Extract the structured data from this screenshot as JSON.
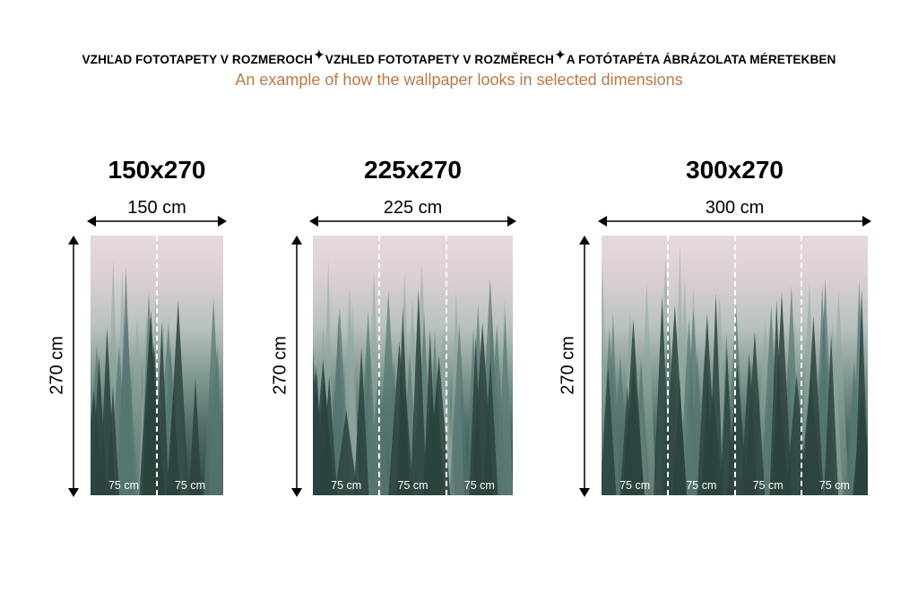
{
  "header": {
    "languages": [
      "VZHĽAD FOTOTAPETY V ROZMEROCH",
      "VZHLED FOTOTAPETY V ROZMĚRECH",
      "A FOTÓTAPÉTA ÁBRÁZOLATA MÉRETEKBEN"
    ],
    "separator_icon": "sparkle-icon",
    "subtitle": "An example of how the wallpaper looks in selected dimensions",
    "subtitle_color": "#b97848"
  },
  "variants": [
    {
      "title": "150x270",
      "width_label": "150 cm",
      "height_label": "270 cm",
      "panels": [
        "75 cm",
        "75 cm"
      ]
    },
    {
      "title": "225x270",
      "width_label": "225 cm",
      "height_label": "270 cm",
      "panels": [
        "75 cm",
        "75 cm",
        "75 cm"
      ]
    },
    {
      "title": "300x270",
      "width_label": "300 cm",
      "height_label": "270 cm",
      "panels": [
        "75 cm",
        "75 cm",
        "75 cm",
        "75 cm"
      ]
    }
  ]
}
